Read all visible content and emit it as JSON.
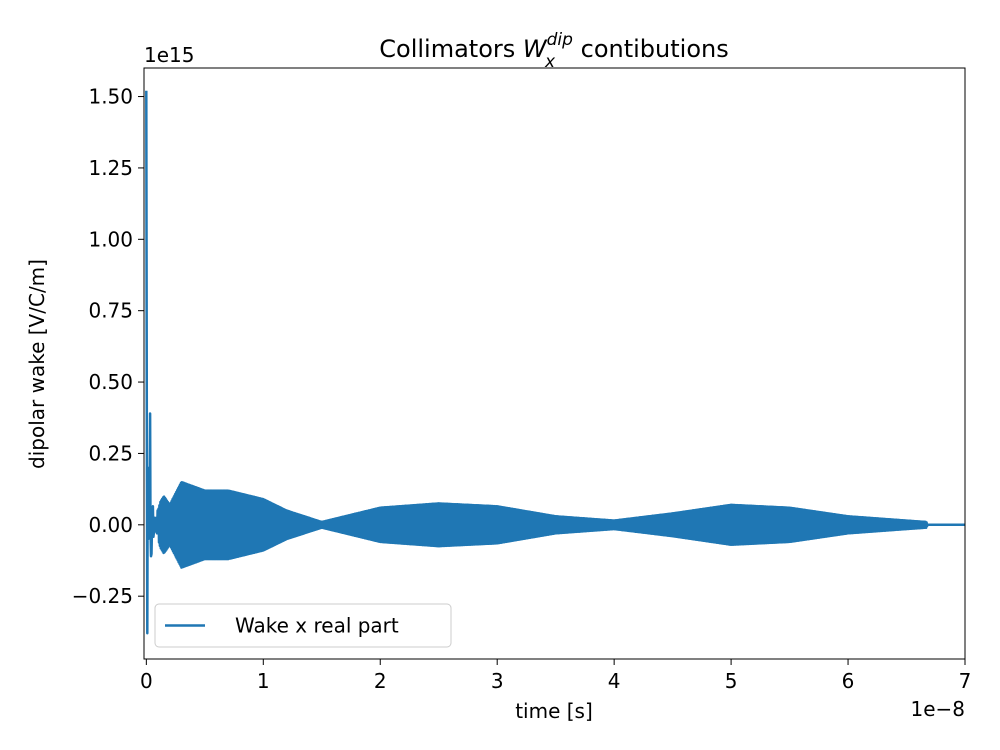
{
  "chart_data": {
    "type": "line",
    "title_main": "Collimators ",
    "title_symbol": "W",
    "title_sub": "x",
    "title_sup": "dip",
    "title_rest": " contibutions",
    "xlabel": "time [s]",
    "ylabel": "dipolar wake [V/C/m]",
    "x_offset_text": "1e−8",
    "y_offset_text": "1e15",
    "x_scale": 1e-08,
    "y_scale": 1000000000000000.0,
    "xlim": [
      -2e-10,
      7e-08
    ],
    "ylim": [
      -470000000000000.0,
      1600000000000000.0
    ],
    "xticks": [
      0,
      1e-08,
      2e-08,
      3e-08,
      4e-08,
      5e-08,
      6e-08,
      7e-08
    ],
    "xtick_labels": [
      "0",
      "1",
      "2",
      "3",
      "4",
      "5",
      "6",
      "7"
    ],
    "yticks": [
      -250000000000000.0,
      0,
      250000000000000.0,
      500000000000000.0,
      750000000000000.0,
      1000000000000000.0,
      1250000000000000.0,
      1500000000000000.0
    ],
    "ytick_labels": [
      "−0.25",
      "0.00",
      "0.25",
      "0.50",
      "0.75",
      "1.00",
      "1.25",
      "1.50"
    ],
    "legend_position": "lower-left",
    "grid": false,
    "series": [
      {
        "name": "Wake x real part",
        "color": "#1f77b4",
        "x": [
          0,
          4e-11,
          8e-11,
          1.2e-10,
          1.6e-10,
          2e-10,
          2.6e-10,
          3.2e-10,
          3.8e-10,
          4.4e-10,
          5e-10,
          5.8e-10,
          6.6e-10,
          7.4e-10,
          8.2e-10,
          9e-10,
          1e-09,
          1.2e-09,
          1.5e-09,
          2e-09,
          3e-09,
          5e-09,
          7e-09,
          1e-08,
          1.2e-08,
          1.5e-08,
          1.8e-08,
          2e-08,
          2.5e-08,
          3e-08,
          3.5e-08,
          4e-08,
          4.5e-08,
          5e-08,
          5.5e-08,
          6e-08,
          6.5e-08,
          6.67e-08,
          6.68e-08,
          7e-08
        ],
        "envelope": [
          1520000000000000.0,
          400000000000000.0,
          -380000000000000.0,
          200000000000000.0,
          -50000000000000.0,
          120000000000000.0,
          -100000000000000.0,
          390000000000000.0,
          -250000000000000.0,
          170000000000000.0,
          -100000000000000.0,
          120000000000000.0,
          -80000000000000.0,
          60000000000000.0,
          -50000000000000.0,
          50000000000000.0,
          50000000000000.0,
          80000000000000.0,
          100000000000000.0,
          70000000000000.0,
          150000000000000.0,
          120000000000000.0,
          120000000000000.0,
          90000000000000.0,
          50000000000000.0,
          10000000000000.0,
          40000000000000.0,
          60000000000000.0,
          75000000000000.0,
          65000000000000.0,
          30000000000000.0,
          15000000000000.0,
          40000000000000.0,
          70000000000000.0,
          60000000000000.0,
          30000000000000.0,
          15000000000000.0,
          10000000000000.0,
          0,
          0
        ]
      }
    ]
  }
}
